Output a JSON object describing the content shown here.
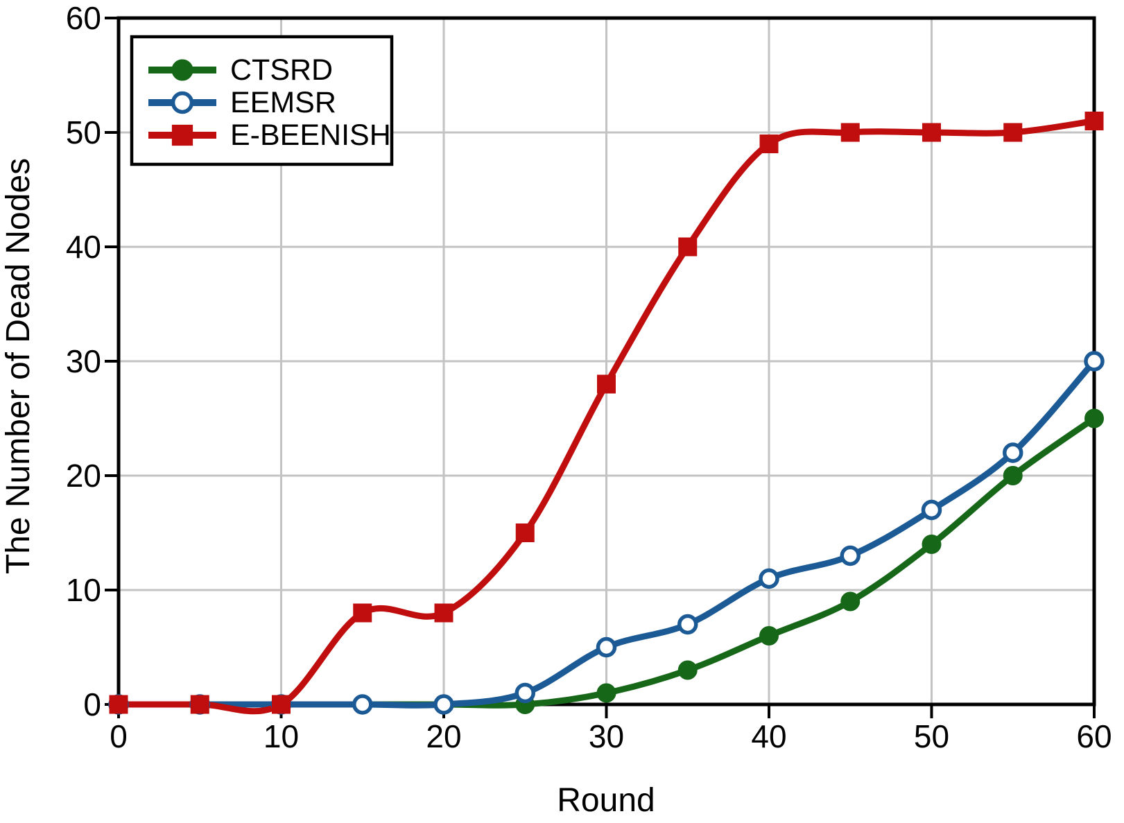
{
  "figure": {
    "background": "#ffffff",
    "axis_color": "#000000",
    "grid_color": "#c3c3c3"
  },
  "chart_data": {
    "type": "line",
    "title": "",
    "xlabel": "Round",
    "ylabel": "The Number of Dead Nodes",
    "xlim": [
      0,
      60
    ],
    "ylim": [
      0,
      60
    ],
    "xticks": [
      0,
      10,
      20,
      30,
      40,
      50,
      60
    ],
    "yticks": [
      0,
      10,
      20,
      30,
      40,
      50,
      60
    ],
    "grid": true,
    "legend_position": "top-left",
    "x": [
      0,
      5,
      10,
      15,
      20,
      25,
      30,
      35,
      40,
      45,
      50,
      55,
      60
    ],
    "series": [
      {
        "name": "CTSRD",
        "color": "#166718",
        "marker": "filled-circle",
        "values": [
          0,
          0,
          0,
          0,
          0,
          0,
          1,
          3,
          6,
          9,
          14,
          20,
          25
        ]
      },
      {
        "name": "EEMSR",
        "color": "#1c5a96",
        "marker": "open-circle",
        "values": [
          0,
          0,
          0,
          0,
          0,
          1,
          5,
          7,
          11,
          13,
          17,
          22,
          30
        ]
      },
      {
        "name": "E-BEENISH",
        "color": "#c00d0d",
        "marker": "filled-square",
        "values": [
          0,
          0,
          0,
          8,
          8,
          15,
          28,
          40,
          49,
          50,
          50,
          50,
          51
        ]
      }
    ]
  }
}
